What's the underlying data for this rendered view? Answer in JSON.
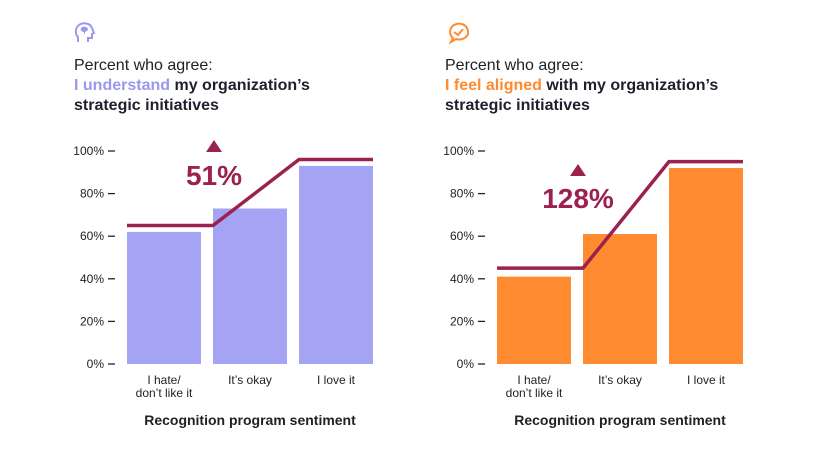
{
  "chart_data": [
    {
      "type": "bar",
      "icon": "brain-head-icon",
      "title_line1": "Percent who agree:",
      "title_highlight": "I understand",
      "title_rest": "my organization’s strategic initiatives",
      "categories": [
        "I hate/ don’t like it",
        "It’s okay",
        "I love it"
      ],
      "values": [
        62,
        73,
        93
      ],
      "trend_line": [
        65,
        65,
        96
      ],
      "annotation": "51%",
      "annotation_icon": "up-triangle-icon",
      "xlabel": "Recognition program sentiment",
      "ylabel": "",
      "ylim": [
        0,
        100
      ],
      "yticks": [
        "0%",
        "20%",
        "40%",
        "60%",
        "80%",
        "100%"
      ],
      "bar_color": "#a5a3f3",
      "highlight_color": "#9a97f0"
    },
    {
      "type": "bar",
      "icon": "chat-check-icon",
      "title_line1": "Percent who agree:",
      "title_highlight": "I feel aligned",
      "title_rest": "with my organization’s strategic initiatives",
      "categories": [
        "I hate/ don’t like it",
        "It’s okay",
        "I love it"
      ],
      "values": [
        41,
        61,
        92
      ],
      "trend_line": [
        45,
        45,
        95
      ],
      "annotation": "128%",
      "annotation_icon": "up-triangle-icon",
      "xlabel": "Recognition program sentiment",
      "ylabel": "",
      "ylim": [
        0,
        100
      ],
      "yticks": [
        "0%",
        "20%",
        "40%",
        "60%",
        "80%",
        "100%"
      ],
      "bar_color": "#ff8a2f",
      "highlight_color": "#ff8a2f"
    }
  ],
  "colors": {
    "trend_line": "#9b2150",
    "annotation": "#9b2150",
    "text": "#222222"
  }
}
